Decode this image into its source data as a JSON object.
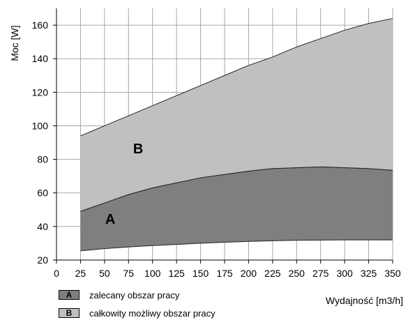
{
  "chart_data": {
    "type": "area",
    "xlabel": "Wydajność [m3/h]",
    "ylabel": "Moc [W]",
    "xlim": [
      0,
      350
    ],
    "ylim": [
      20,
      170
    ],
    "xticks": [
      0,
      25,
      50,
      75,
      100,
      125,
      150,
      175,
      200,
      225,
      250,
      275,
      300,
      325,
      350
    ],
    "yticks": [
      20,
      40,
      60,
      80,
      100,
      120,
      140,
      160
    ],
    "grid": true,
    "series": [
      {
        "name": "B",
        "x": [
          25,
          50,
          75,
          100,
          125,
          150,
          175,
          200,
          225,
          250,
          275,
          300,
          325,
          350
        ],
        "upper": [
          94,
          100,
          106,
          112,
          118,
          124,
          130,
          136,
          141,
          147,
          152,
          157,
          161,
          164
        ],
        "lower": [
          49,
          54,
          59,
          63,
          66,
          69,
          71,
          73,
          74.5,
          75,
          75.5,
          75,
          74.5,
          73.5
        ],
        "color": "#c0c0c0"
      },
      {
        "name": "A",
        "x": [
          25,
          50,
          75,
          100,
          125,
          150,
          175,
          200,
          225,
          250,
          275,
          300,
          325,
          350
        ],
        "upper": [
          49,
          54,
          59,
          63,
          66,
          69,
          71,
          73,
          74.5,
          75,
          75.5,
          75,
          74.5,
          73.5
        ],
        "lower": [
          25.5,
          26.8,
          27.8,
          28.6,
          29.3,
          30,
          30.6,
          31.1,
          31.5,
          31.8,
          31.9,
          32,
          32,
          32
        ],
        "color": "#7f7f7f"
      }
    ],
    "annotations": [
      {
        "text": "B",
        "x": 85,
        "y": 87
      },
      {
        "text": "A",
        "x": 56,
        "y": 45
      }
    ],
    "legend": {
      "position": "bottom-left",
      "items": [
        {
          "key": "A",
          "label": "zalecany obszar pracy",
          "color": "#7f7f7f"
        },
        {
          "key": "B",
          "label": "całkowity możliwy obszar pracy",
          "color": "#c0c0c0"
        }
      ]
    }
  }
}
